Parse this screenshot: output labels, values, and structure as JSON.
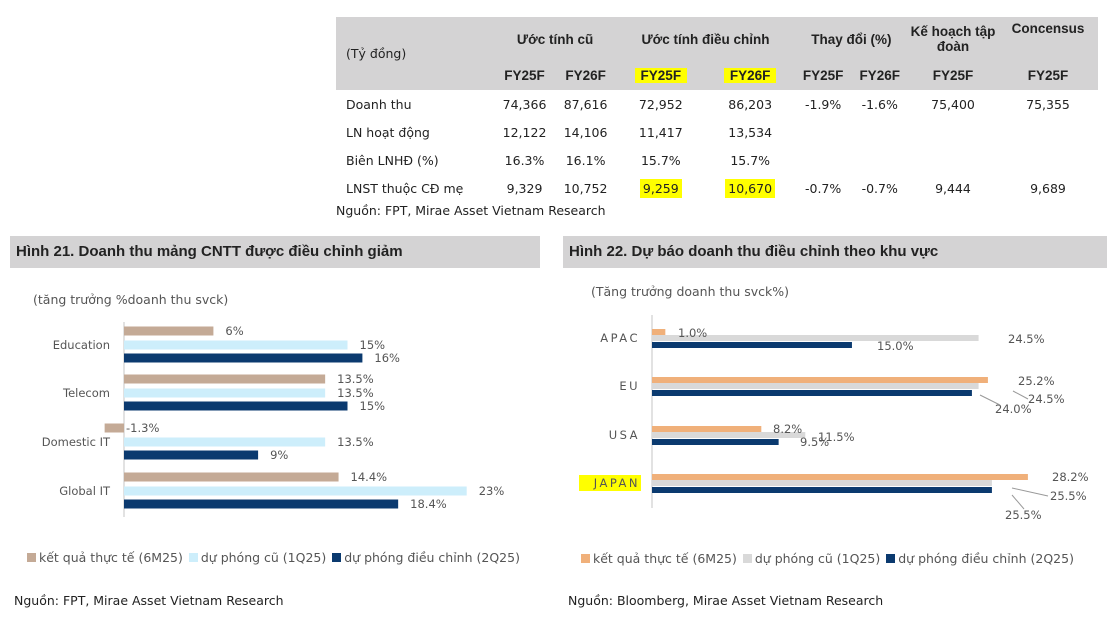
{
  "table": {
    "unit_label": "(Tỷ đồng)",
    "group_headers": [
      "Ước tính cũ",
      "Ước tính điều chỉnh",
      "Thay đổi (%)",
      "Kế hoạch tập đoàn",
      "Concensus"
    ],
    "sub_headers": [
      "FY25F",
      "FY26F",
      "FY25F",
      "FY26F",
      "FY25F",
      "FY26F",
      "FY25F",
      "FY25F"
    ],
    "rows": [
      {
        "label": "Doanh thu",
        "values": [
          "74,366",
          "87,616",
          "72,952",
          "86,203",
          "-1.9%",
          "-1.6%",
          "75,400",
          "75,355"
        ]
      },
      {
        "label": "LN hoạt động",
        "values": [
          "12,122",
          "14,106",
          "11,417",
          "13,534",
          "",
          "",
          "",
          ""
        ]
      },
      {
        "label": "Biên LNHĐ (%)",
        "values": [
          "16.3%",
          "16.1%",
          "15.7%",
          "15.7%",
          "",
          "",
          "",
          ""
        ]
      },
      {
        "label": "LNST thuộc CĐ mẹ",
        "values": [
          "9,329",
          "10,752",
          "9,259",
          "10,670",
          "-0.7%",
          "-0.7%",
          "9,444",
          "9,689"
        ]
      }
    ],
    "source": "Nguồn: FPT, Mirae Asset Vietnam Research"
  },
  "chart_data": [
    {
      "type": "bar",
      "orientation": "horizontal",
      "title": "Hình 21. Doanh thu mảng CNTT được điều chỉnh giảm",
      "subtitle": "(tăng trưởng %doanh thu svck)",
      "categories": [
        "Education",
        "Telecom",
        "Domestic IT",
        "Global IT"
      ],
      "series": [
        {
          "name": "kết quả thực tế (6M25)",
          "color": "#c4aa96",
          "values": [
            6,
            13.5,
            -1.3,
            14.4
          ],
          "labels": [
            "6%",
            "13.5%",
            "-1.3%",
            "14.4%"
          ]
        },
        {
          "name": "dự phóng cũ (1Q25)",
          "color": "#cdeefb",
          "values": [
            15,
            13.5,
            13.5,
            23
          ],
          "labels": [
            "15%",
            "13.5%",
            "13.5%",
            "23%"
          ]
        },
        {
          "name": "dự phóng điều chỉnh (2Q25)",
          "color": "#0b3a6f",
          "values": [
            16,
            15,
            9,
            18.4
          ],
          "labels": [
            "16%",
            "15%",
            "9%",
            "18.4%"
          ]
        }
      ],
      "legend_position": "bottom",
      "grid": false,
      "source": "Nguồn: FPT, Mirae Asset Vietnam Research"
    },
    {
      "type": "bar",
      "orientation": "horizontal",
      "title": "Hình 22. Dự báo doanh thu điều chỉnh theo khu vực",
      "subtitle": "(Tăng trưởng doanh thu svck%)",
      "categories": [
        "APAC",
        "EU",
        "USA",
        "JAPAN"
      ],
      "highlight_category": "JAPAN",
      "series": [
        {
          "name": "kết quả thực tế (6M25)",
          "color": "#f0b07a",
          "values": [
            1.0,
            25.2,
            8.2,
            28.2
          ],
          "labels": [
            "1.0%",
            "25.2%",
            "8.2%",
            "28.2%"
          ]
        },
        {
          "name": "dự phóng cũ (1Q25)",
          "color": "#d9d9d9",
          "values": [
            24.5,
            24.5,
            11.5,
            25.5
          ],
          "labels": [
            "24.5%",
            "24.5%",
            "11.5%",
            "25.5%"
          ]
        },
        {
          "name": "dự phóng điều chỉnh (2Q25)",
          "color": "#0b3a6f",
          "values": [
            15.0,
            24.0,
            9.5,
            25.5
          ],
          "labels": [
            "15.0%",
            "24.0%",
            "9.5%",
            "25.5%"
          ]
        }
      ],
      "legend_position": "bottom",
      "grid": false,
      "source": "Nguồn: Bloomberg, Mirae Asset Vietnam Research"
    }
  ]
}
